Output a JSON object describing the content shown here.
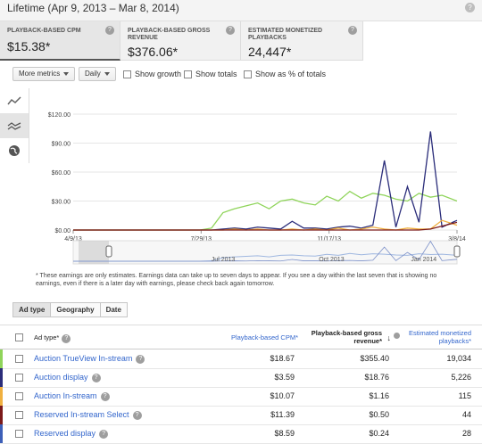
{
  "header": {
    "title": "Lifetime (Apr 9, 2013 – Mar 8, 2014)",
    "help": "?"
  },
  "cards": [
    {
      "label": "PLAYBACK-BASED CPM",
      "value": "$15.38*",
      "help": "?"
    },
    {
      "label": "PLAYBACK-BASED GROSS REVENUE",
      "value": "$376.06*",
      "help": "?"
    },
    {
      "label": "ESTIMATED MONETIZED PLAYBACKS",
      "value": "24,447*",
      "help": "?"
    }
  ],
  "toolbar": {
    "more_metrics": "More metrics",
    "interval": "Daily",
    "show_growth": "Show growth",
    "show_totals": "Show totals",
    "show_percent": "Show as % of totals"
  },
  "chart_data": {
    "type": "line",
    "y_ticks": [
      "$120.00",
      "$90.00",
      "$60.00",
      "$30.00",
      "$0.00"
    ],
    "ylim": [
      0,
      120
    ],
    "x_ticks": [
      "4/9/13",
      "7/29/13",
      "11/17/13",
      "3/8/14"
    ],
    "x": [
      0,
      10,
      20,
      30,
      40,
      50,
      60,
      70,
      80,
      90,
      100,
      110,
      120,
      130,
      140,
      150,
      160,
      170,
      180,
      190,
      200,
      210,
      220,
      230,
      240,
      250,
      260,
      270,
      280,
      290,
      300,
      310,
      320,
      333
    ],
    "series": [
      {
        "color": "#8fd45a",
        "values": [
          0,
          0,
          0,
          0,
          0,
          0,
          0,
          0,
          0,
          0,
          0,
          0,
          2,
          18,
          22,
          25,
          28,
          22,
          30,
          32,
          28,
          26,
          35,
          30,
          40,
          33,
          38,
          36,
          32,
          30,
          38,
          34,
          36,
          30
        ]
      },
      {
        "color": "#2b2d7a",
        "values": [
          0,
          0,
          0,
          0,
          0,
          0,
          0,
          0,
          0,
          0,
          0,
          0,
          0,
          1,
          2,
          1,
          3,
          2,
          1,
          9,
          2,
          2,
          1,
          3,
          4,
          2,
          5,
          72,
          3,
          45,
          8,
          102,
          3,
          10
        ]
      },
      {
        "color": "#f0b040",
        "values": [
          0,
          0,
          0,
          0,
          0,
          0,
          0,
          0,
          0,
          0,
          0,
          0,
          0,
          0,
          1,
          0,
          1,
          0,
          0,
          1,
          0,
          1,
          0,
          2,
          0,
          1,
          3,
          1,
          0,
          2,
          1,
          1,
          10,
          5
        ]
      },
      {
        "color": "#7b1a1a",
        "values": [
          0,
          0,
          0,
          0,
          0,
          0,
          0,
          0,
          0,
          0,
          0,
          0,
          0,
          0,
          0,
          0,
          0,
          0,
          0,
          0,
          0,
          0,
          0,
          0,
          0,
          0,
          0,
          0,
          0,
          0,
          0,
          1,
          4,
          8
        ]
      }
    ],
    "navigator_labels": [
      "Jul 2013",
      "Oct 2013",
      "Jan 2014"
    ],
    "grid": true
  },
  "note": "* These earnings are only estimates. Earnings data can take up to seven days to appear. If you see a day within the last seven that is showing no earnings, even if there is a later day with earnings, please check back again tomorrow.",
  "tabs": [
    "Ad type",
    "Geography",
    "Date"
  ],
  "table": {
    "headers": {
      "ad_type": "Ad type*",
      "cpm": "Playback-based CPM*",
      "revenue": "Playback-based gross revenue*",
      "playbacks": "Estimated monetized playbacks*"
    },
    "rows": [
      {
        "name": "Auction TrueView In-stream",
        "color": "#8fd45a",
        "cpm": "$18.67",
        "revenue": "$355.40",
        "playbacks": "19,034"
      },
      {
        "name": "Auction display",
        "color": "#2b2d7a",
        "cpm": "$3.59",
        "revenue": "$18.76",
        "playbacks": "5,226"
      },
      {
        "name": "Auction In-stream",
        "color": "#f0b040",
        "cpm": "$10.07",
        "revenue": "$1.16",
        "playbacks": "115"
      },
      {
        "name": "Reserved In-stream Select",
        "color": "#7b1a1a",
        "cpm": "$11.39",
        "revenue": "$0.50",
        "playbacks": "44"
      },
      {
        "name": "Reserved display",
        "color": "#3d5fb8",
        "cpm": "$8.59",
        "revenue": "$0.24",
        "playbacks": "28"
      }
    ]
  }
}
